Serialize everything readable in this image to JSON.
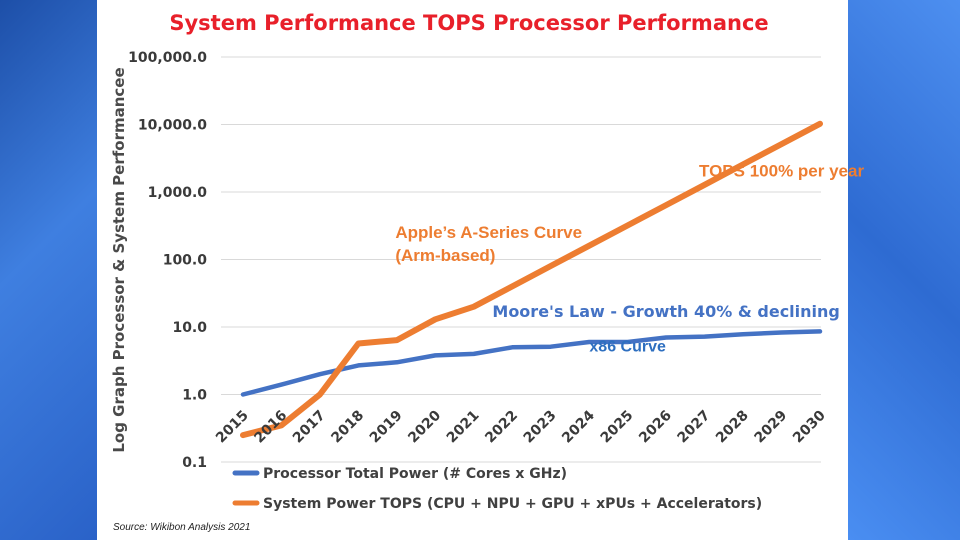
{
  "chart_data": {
    "type": "line",
    "title": "System Performance TOPS Processor Performance",
    "ylabel": "Log Graph Processor & System Performancee",
    "xlabel": "",
    "yscale": "log",
    "ylim": [
      0.1,
      100000
    ],
    "y_ticks": [
      "0.1",
      "1.0",
      "10.0",
      "100.0",
      "1,000.0",
      "10,000.0",
      "100,000.0"
    ],
    "y_tick_values": [
      0.1,
      1,
      10,
      100,
      1000,
      10000,
      100000
    ],
    "categories": [
      "2015",
      "2016",
      "2017",
      "2018",
      "2019",
      "2020",
      "2021",
      "2022",
      "2023",
      "2024",
      "2025",
      "2026",
      "2027",
      "2028",
      "2029",
      "2030"
    ],
    "grid": true,
    "legend_position": "bottom",
    "series": [
      {
        "name": "Processor Total Power (# Cores x GHz)",
        "color": "#4472c4",
        "values": [
          1.0,
          1.4,
          2.0,
          2.7,
          3.0,
          3.8,
          4.0,
          5.0,
          5.1,
          6.0,
          6.0,
          7.0,
          7.2,
          7.8,
          8.3,
          8.6
        ]
      },
      {
        "name": "System Power TOPS (CPU + NPU + GPU + xPUs + Accelerators)",
        "color": "#ed7d31",
        "values": [
          0.25,
          0.35,
          1.0,
          5.7,
          6.4,
          13,
          20,
          40,
          80,
          160,
          320,
          640,
          1280,
          2560,
          5120,
          10240
        ]
      }
    ],
    "annotations": [
      {
        "text": "TOPS 100% per year",
        "style": "orange",
        "x": "2029",
        "y": 1700
      },
      {
        "text": "Apple’s A-Series Curve",
        "style": "orange",
        "x": "2020",
        "y": 210
      },
      {
        "text": "(Arm-based)",
        "style": "orange",
        "x": "2020",
        "y": 95
      },
      {
        "text": "Moore's Law - Growth 40% & declining",
        "style": "moore",
        "x": "2026",
        "y": 14
      },
      {
        "text": "x86 Curve",
        "style": "blue",
        "x": "2025",
        "y": 4.3
      }
    ],
    "source": "Source: Wikibon Analysis 2021"
  }
}
